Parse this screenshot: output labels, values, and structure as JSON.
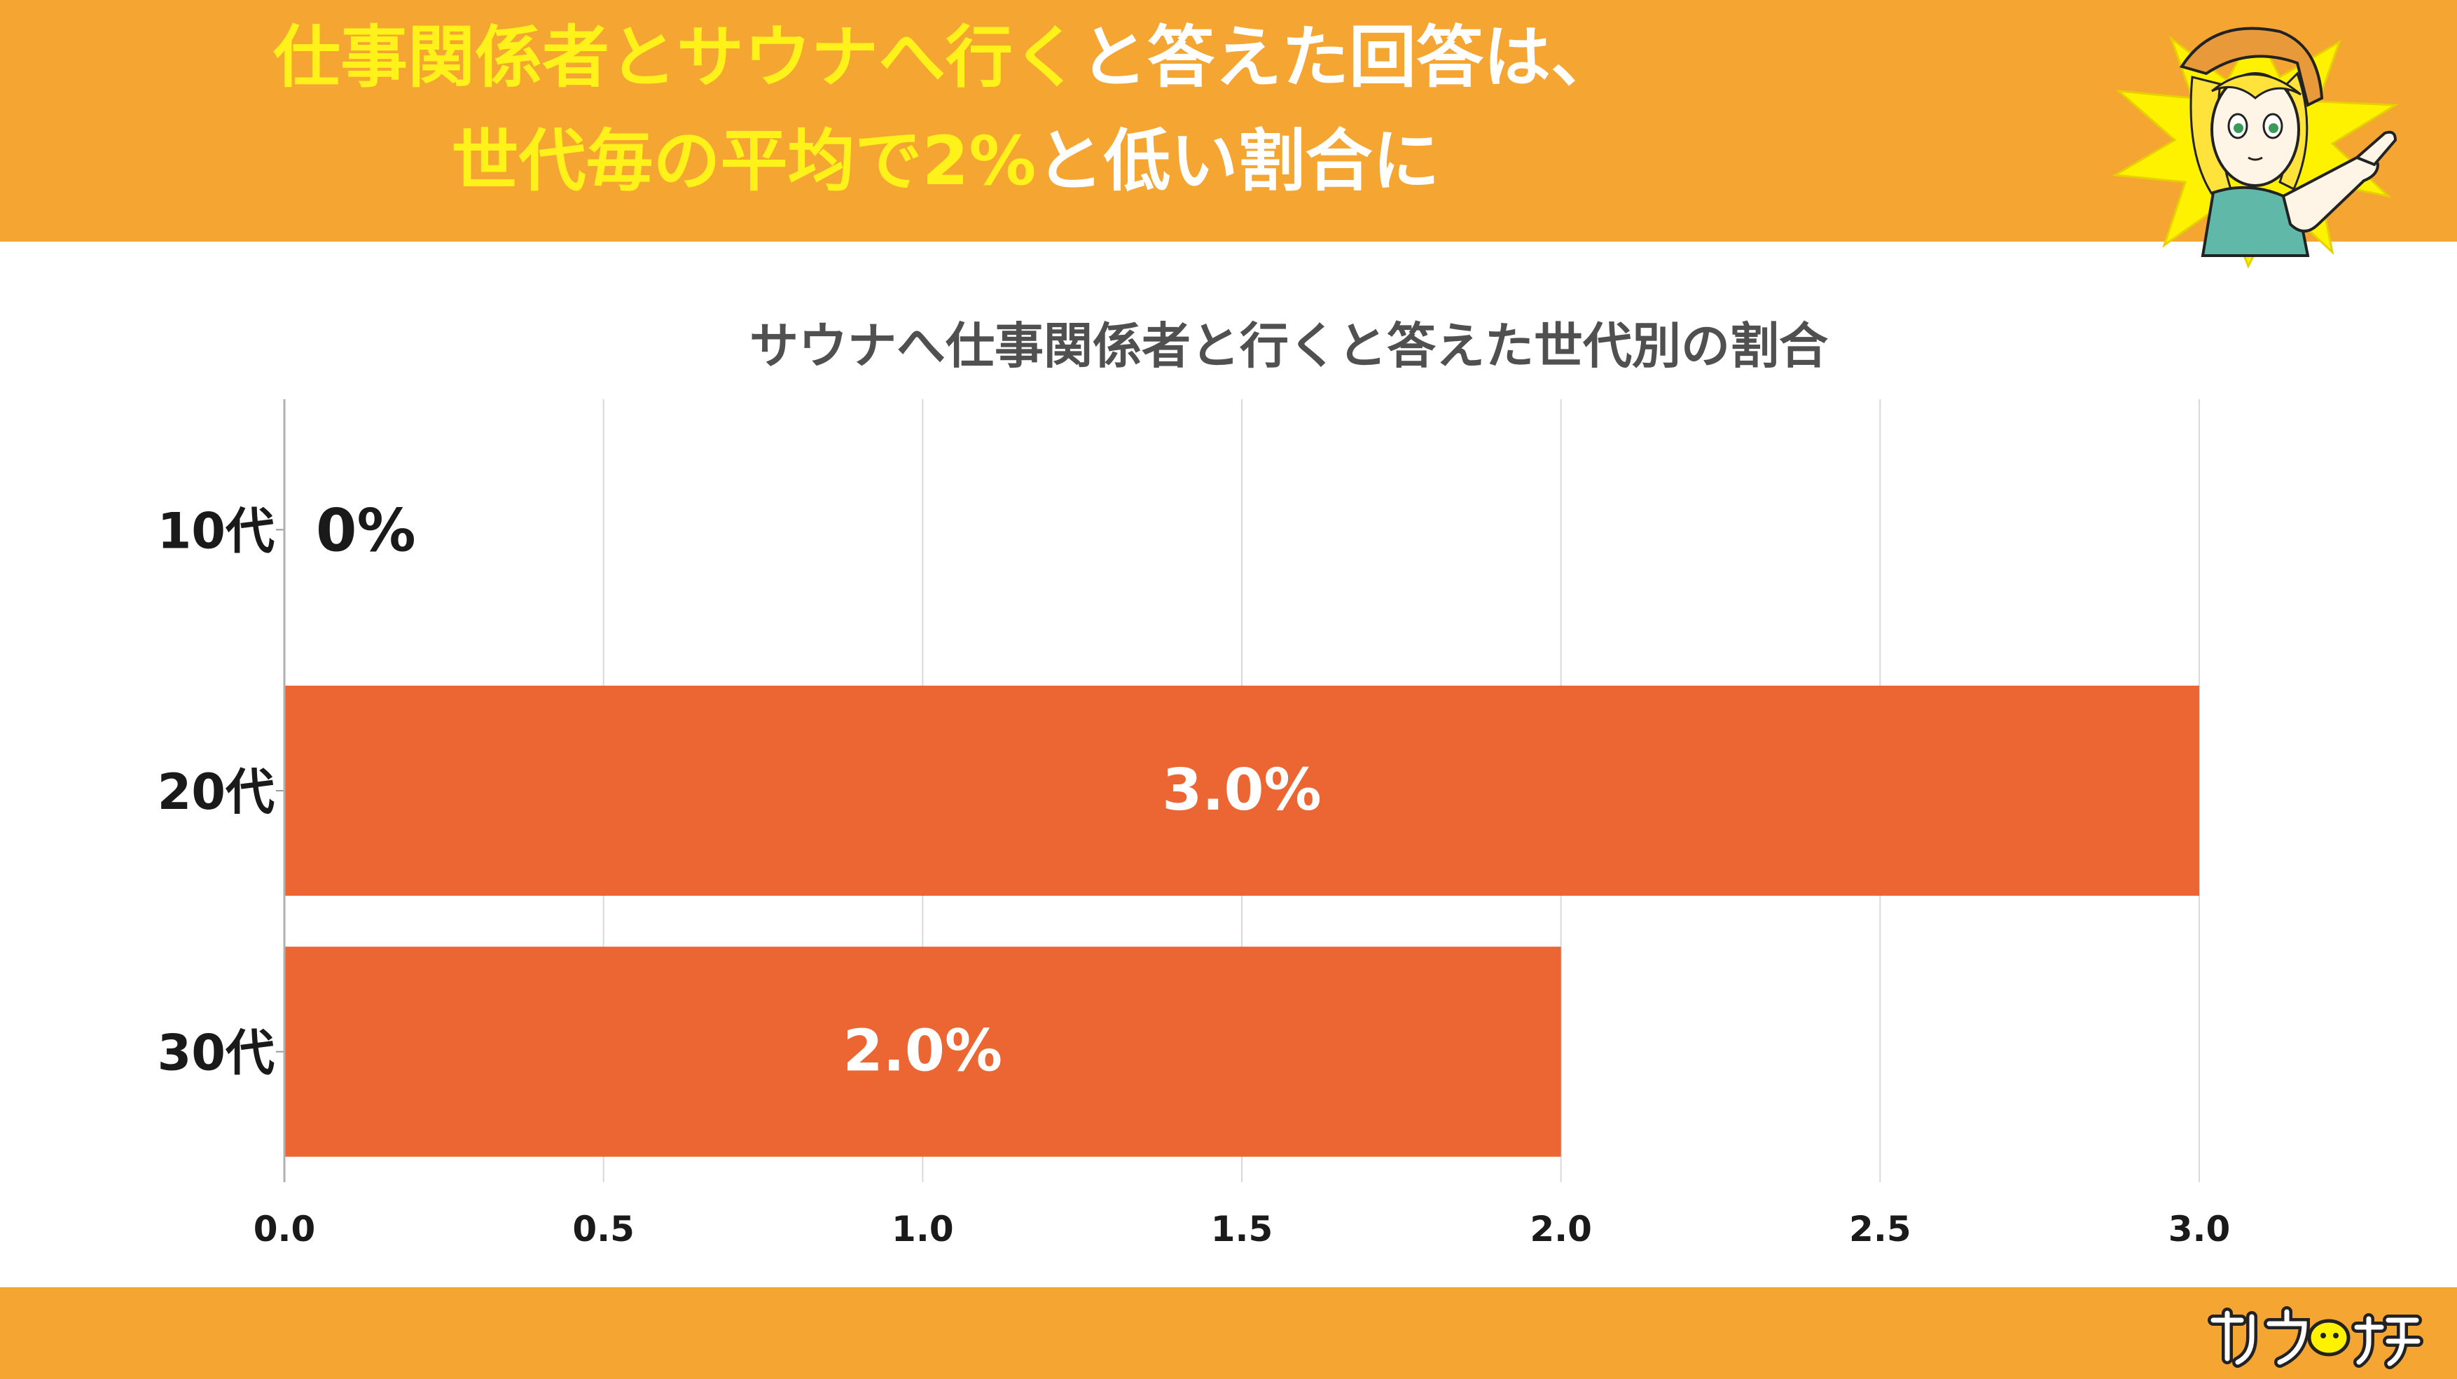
{
  "header": {
    "line1_highlight": "仕事関係者とサウナへ行く",
    "line1_rest": "と答えた回答は、",
    "line2_highlight": "世代毎の平均で2%",
    "line2_rest": "と低い割合に"
  },
  "colors": {
    "band": "#f5a531",
    "bar": "#eb6633",
    "highlight_text": "#fff21a",
    "title_text": "#505050",
    "grid": "#d9d9d9"
  },
  "mascot": {
    "icon": "pointing-girl-mascot-icon"
  },
  "footer": {
    "logo_icon": "sauna-tech-logo-icon"
  },
  "chart_data": {
    "type": "bar",
    "orientation": "horizontal",
    "title": "サウナへ仕事関係者と行くと答えた世代別の割合",
    "categories": [
      "10代",
      "20代",
      "30代"
    ],
    "values": [
      0,
      3.0,
      2.0
    ],
    "data_labels": [
      "0%",
      "3.0%",
      "2.0%"
    ],
    "xlim": [
      0,
      3.0
    ],
    "xticks": [
      0.0,
      0.5,
      1.0,
      1.5,
      2.0,
      2.5,
      3.0
    ],
    "xtick_labels": [
      "0.0",
      "0.5",
      "1.0",
      "1.5",
      "2.0",
      "2.5",
      "3.0"
    ],
    "xlabel": "",
    "ylabel": "",
    "grid": "vertical",
    "legend": "none"
  }
}
